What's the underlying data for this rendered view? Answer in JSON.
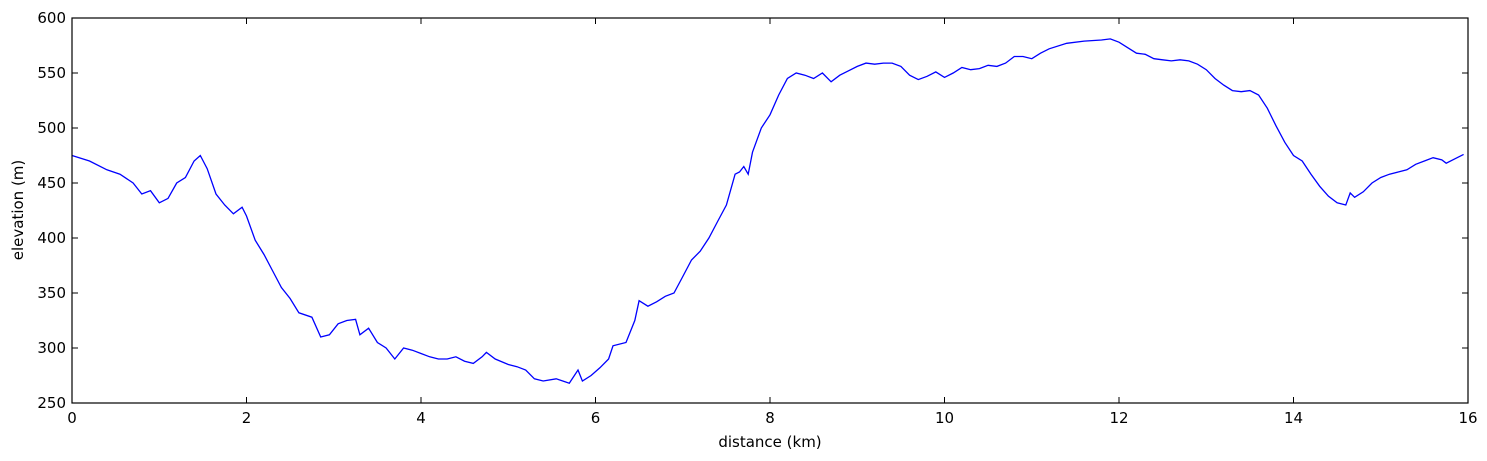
{
  "chart_data": {
    "type": "line",
    "title": "",
    "xlabel": "distance (km)",
    "ylabel": "elevation (m)",
    "xlim": [
      0,
      16
    ],
    "ylim": [
      250,
      600
    ],
    "xticks": [
      0,
      2,
      4,
      6,
      8,
      10,
      12,
      14,
      16
    ],
    "yticks": [
      250,
      300,
      350,
      400,
      450,
      500,
      550,
      600
    ],
    "grid": false,
    "legend": "none",
    "series": [
      {
        "color": "#0000ff",
        "points": [
          [
            0.0,
            475
          ],
          [
            0.2,
            470
          ],
          [
            0.4,
            462
          ],
          [
            0.55,
            458
          ],
          [
            0.7,
            450
          ],
          [
            0.8,
            440
          ],
          [
            0.9,
            443
          ],
          [
            1.0,
            432
          ],
          [
            1.1,
            436
          ],
          [
            1.2,
            450
          ],
          [
            1.3,
            455
          ],
          [
            1.4,
            470
          ],
          [
            1.47,
            475
          ],
          [
            1.55,
            463
          ],
          [
            1.65,
            440
          ],
          [
            1.75,
            430
          ],
          [
            1.85,
            422
          ],
          [
            1.95,
            428
          ],
          [
            2.0,
            420
          ],
          [
            2.1,
            398
          ],
          [
            2.2,
            385
          ],
          [
            2.3,
            370
          ],
          [
            2.4,
            355
          ],
          [
            2.5,
            345
          ],
          [
            2.6,
            332
          ],
          [
            2.75,
            328
          ],
          [
            2.85,
            310
          ],
          [
            2.95,
            312
          ],
          [
            3.05,
            322
          ],
          [
            3.15,
            325
          ],
          [
            3.25,
            326
          ],
          [
            3.3,
            312
          ],
          [
            3.4,
            318
          ],
          [
            3.5,
            305
          ],
          [
            3.6,
            300
          ],
          [
            3.7,
            290
          ],
          [
            3.8,
            300
          ],
          [
            3.9,
            298
          ],
          [
            4.0,
            295
          ],
          [
            4.1,
            292
          ],
          [
            4.2,
            290
          ],
          [
            4.3,
            290
          ],
          [
            4.4,
            292
          ],
          [
            4.5,
            288
          ],
          [
            4.6,
            286
          ],
          [
            4.7,
            292
          ],
          [
            4.75,
            296
          ],
          [
            4.85,
            290
          ],
          [
            5.0,
            285
          ],
          [
            5.1,
            283
          ],
          [
            5.2,
            280
          ],
          [
            5.3,
            272
          ],
          [
            5.4,
            270
          ],
          [
            5.55,
            272
          ],
          [
            5.7,
            268
          ],
          [
            5.8,
            280
          ],
          [
            5.85,
            270
          ],
          [
            5.95,
            275
          ],
          [
            6.05,
            282
          ],
          [
            6.15,
            290
          ],
          [
            6.2,
            302
          ],
          [
            6.35,
            305
          ],
          [
            6.45,
            325
          ],
          [
            6.5,
            343
          ],
          [
            6.6,
            338
          ],
          [
            6.7,
            342
          ],
          [
            6.8,
            347
          ],
          [
            6.9,
            350
          ],
          [
            7.0,
            365
          ],
          [
            7.1,
            380
          ],
          [
            7.2,
            388
          ],
          [
            7.3,
            400
          ],
          [
            7.4,
            415
          ],
          [
            7.5,
            430
          ],
          [
            7.6,
            458
          ],
          [
            7.65,
            460
          ],
          [
            7.7,
            465
          ],
          [
            7.75,
            458
          ],
          [
            7.8,
            478
          ],
          [
            7.9,
            500
          ],
          [
            8.0,
            512
          ],
          [
            8.1,
            530
          ],
          [
            8.2,
            545
          ],
          [
            8.3,
            550
          ],
          [
            8.4,
            548
          ],
          [
            8.5,
            545
          ],
          [
            8.6,
            550
          ],
          [
            8.7,
            542
          ],
          [
            8.8,
            548
          ],
          [
            8.9,
            552
          ],
          [
            9.0,
            556
          ],
          [
            9.1,
            559
          ],
          [
            9.2,
            558
          ],
          [
            9.3,
            559
          ],
          [
            9.4,
            559
          ],
          [
            9.5,
            556
          ],
          [
            9.6,
            548
          ],
          [
            9.7,
            544
          ],
          [
            9.8,
            547
          ],
          [
            9.9,
            551
          ],
          [
            10.0,
            546
          ],
          [
            10.1,
            550
          ],
          [
            10.2,
            555
          ],
          [
            10.3,
            553
          ],
          [
            10.4,
            554
          ],
          [
            10.5,
            557
          ],
          [
            10.6,
            556
          ],
          [
            10.7,
            559
          ],
          [
            10.8,
            565
          ],
          [
            10.9,
            565
          ],
          [
            11.0,
            563
          ],
          [
            11.1,
            568
          ],
          [
            11.2,
            572
          ],
          [
            11.4,
            577
          ],
          [
            11.6,
            579
          ],
          [
            11.8,
            580
          ],
          [
            11.9,
            581
          ],
          [
            12.0,
            578
          ],
          [
            12.1,
            573
          ],
          [
            12.2,
            568
          ],
          [
            12.3,
            567
          ],
          [
            12.4,
            563
          ],
          [
            12.5,
            562
          ],
          [
            12.6,
            561
          ],
          [
            12.7,
            562
          ],
          [
            12.8,
            561
          ],
          [
            12.9,
            558
          ],
          [
            13.0,
            553
          ],
          [
            13.1,
            545
          ],
          [
            13.2,
            539
          ],
          [
            13.3,
            534
          ],
          [
            13.4,
            533
          ],
          [
            13.5,
            534
          ],
          [
            13.6,
            530
          ],
          [
            13.7,
            518
          ],
          [
            13.8,
            502
          ],
          [
            13.9,
            487
          ],
          [
            14.0,
            475
          ],
          [
            14.1,
            470
          ],
          [
            14.2,
            458
          ],
          [
            14.3,
            447
          ],
          [
            14.4,
            438
          ],
          [
            14.5,
            432
          ],
          [
            14.6,
            430
          ],
          [
            14.65,
            441
          ],
          [
            14.7,
            437
          ],
          [
            14.8,
            442
          ],
          [
            14.9,
            450
          ],
          [
            15.0,
            455
          ],
          [
            15.1,
            458
          ],
          [
            15.2,
            460
          ],
          [
            15.3,
            462
          ],
          [
            15.4,
            467
          ],
          [
            15.5,
            470
          ],
          [
            15.6,
            473
          ],
          [
            15.7,
            471
          ],
          [
            15.75,
            468
          ],
          [
            15.85,
            472
          ],
          [
            15.95,
            476
          ]
        ]
      }
    ]
  }
}
